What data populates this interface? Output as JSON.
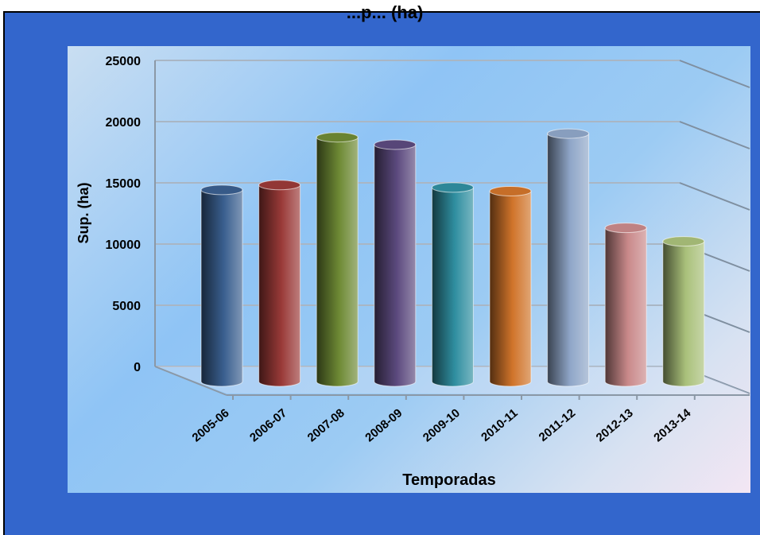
{
  "chart_data": {
    "type": "bar",
    "title": "...p... (ha)",
    "xlabel": "Temporadas",
    "ylabel": "Sup. (ha)",
    "ylim": [
      0,
      25000
    ],
    "yticks": [
      0,
      5000,
      10000,
      15000,
      20000,
      25000
    ],
    "categories": [
      "2005-06",
      "2006-07",
      "2007-08",
      "2008-09",
      "2009-10",
      "2010-11",
      "2011-12",
      "2012-13",
      "2013-14"
    ],
    "values": [
      15200,
      15600,
      19500,
      18900,
      15400,
      15100,
      19800,
      12100,
      11000
    ],
    "colors": [
      "#3a5f8f",
      "#9a3a38",
      "#6e8a35",
      "#5c4a7e",
      "#2f8ea0",
      "#d0742a",
      "#8fa6c8",
      "#c9898a",
      "#a9c07a"
    ],
    "grid": true,
    "legend": "none",
    "style": "3d-cylinder"
  }
}
